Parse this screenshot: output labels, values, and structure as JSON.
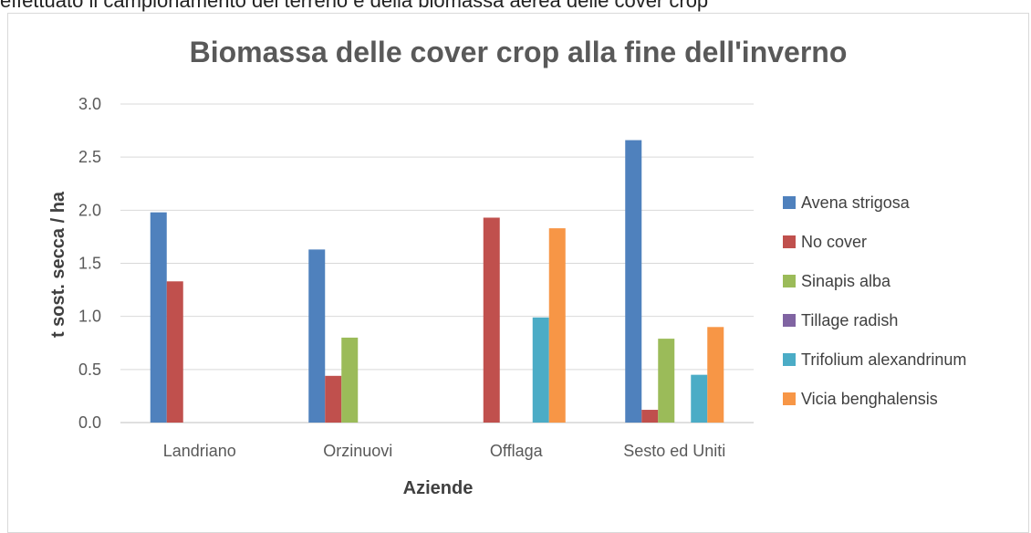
{
  "page_header": {
    "text": "effettuato il campionamento del terreno e della biomassa aerea delle cover crop"
  },
  "chart_data": {
    "type": "bar",
    "title": "Biomassa delle cover crop alla fine dell'inverno",
    "xlabel": "Aziende",
    "ylabel": "t sost. secca / ha",
    "ylim": [
      0,
      3.0
    ],
    "yticks": [
      "0.0",
      "0.5",
      "1.0",
      "1.5",
      "2.0",
      "2.5",
      "3.0"
    ],
    "grid": true,
    "legend_position": "right",
    "categories": [
      "Landriano",
      "Orzinuovi",
      "Offlaga",
      "Sesto ed Uniti"
    ],
    "series": [
      {
        "name": "Avena strigosa",
        "color": "#4f81bd",
        "values": [
          1.98,
          1.63,
          0,
          2.66
        ]
      },
      {
        "name": "No cover",
        "color": "#c0504d",
        "values": [
          1.33,
          0.44,
          1.93,
          0.12
        ]
      },
      {
        "name": "Sinapis alba",
        "color": "#9bbb59",
        "values": [
          0,
          0.8,
          0,
          0.79
        ]
      },
      {
        "name": "Tillage radish",
        "color": "#8064a2",
        "values": [
          0,
          0,
          0,
          0
        ]
      },
      {
        "name": "Trifolium alexandrinum",
        "color": "#4bacc6",
        "values": [
          0,
          0,
          0.99,
          0.45
        ]
      },
      {
        "name": "Vicia benghalensis",
        "color": "#f79646",
        "values": [
          0,
          0,
          1.83,
          0.9
        ]
      }
    ]
  }
}
